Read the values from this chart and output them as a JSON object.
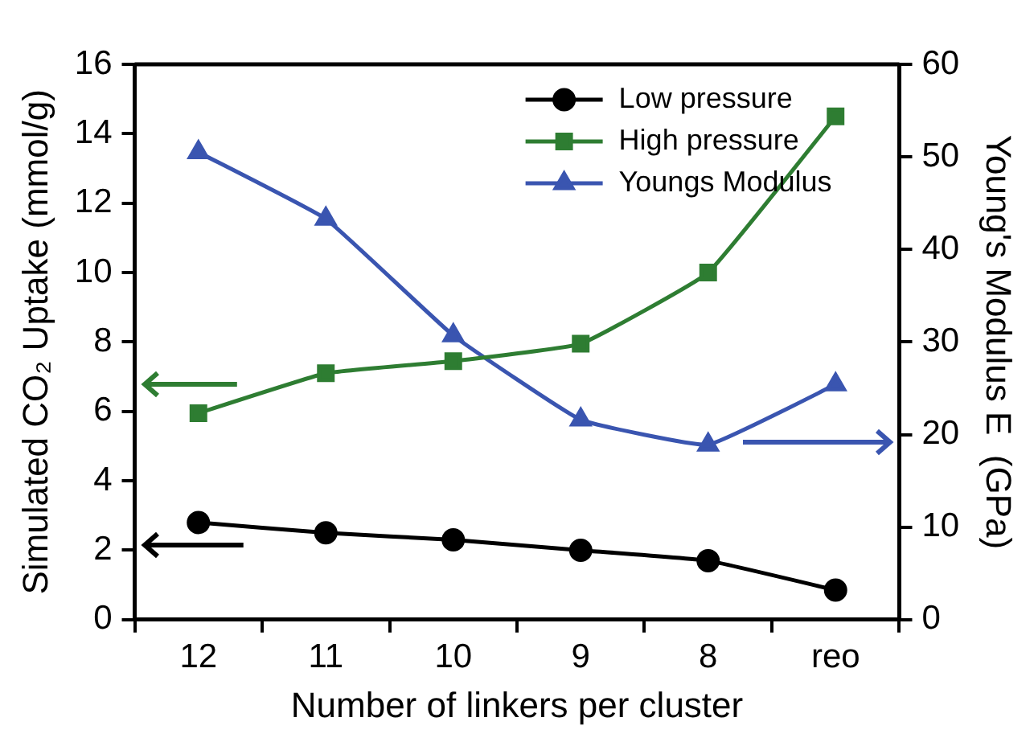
{
  "chart_data": {
    "type": "line",
    "xlabel": "Number of linkers per cluster",
    "ylabel": "Simulated CO₂ Uptake (mmol/g)",
    "y2label": "Young's Modulus E  (GPa)",
    "categories": [
      "12",
      "11",
      "10",
      "9",
      "8",
      "reo"
    ],
    "series": [
      {
        "name": "Low pressure",
        "color": "#000000",
        "marker": "circle",
        "values": [
          2.8,
          2.5,
          2.3,
          2.0,
          1.7,
          0.85
        ]
      },
      {
        "name": "High pressure",
        "color": "#2e7d32",
        "marker": "square",
        "values": [
          5.95,
          7.1,
          7.45,
          7.95,
          10.0,
          14.5
        ]
      },
      {
        "name": "Youngs Modulus",
        "color": "#3a55b0",
        "marker": "triangle",
        "axis": "y2",
        "values": [
          50.5,
          43.3,
          30.7,
          21.6,
          18.9,
          25.4
        ]
      }
    ],
    "ylim": [
      0,
      16
    ],
    "yticks": [
      0,
      2,
      4,
      6,
      8,
      10,
      12,
      14,
      16
    ],
    "y2lim": [
      0,
      60
    ],
    "y2ticks": [
      0,
      10,
      20,
      30,
      40,
      50,
      60
    ],
    "grid": false,
    "legend": "top right",
    "line_style": "solid"
  }
}
